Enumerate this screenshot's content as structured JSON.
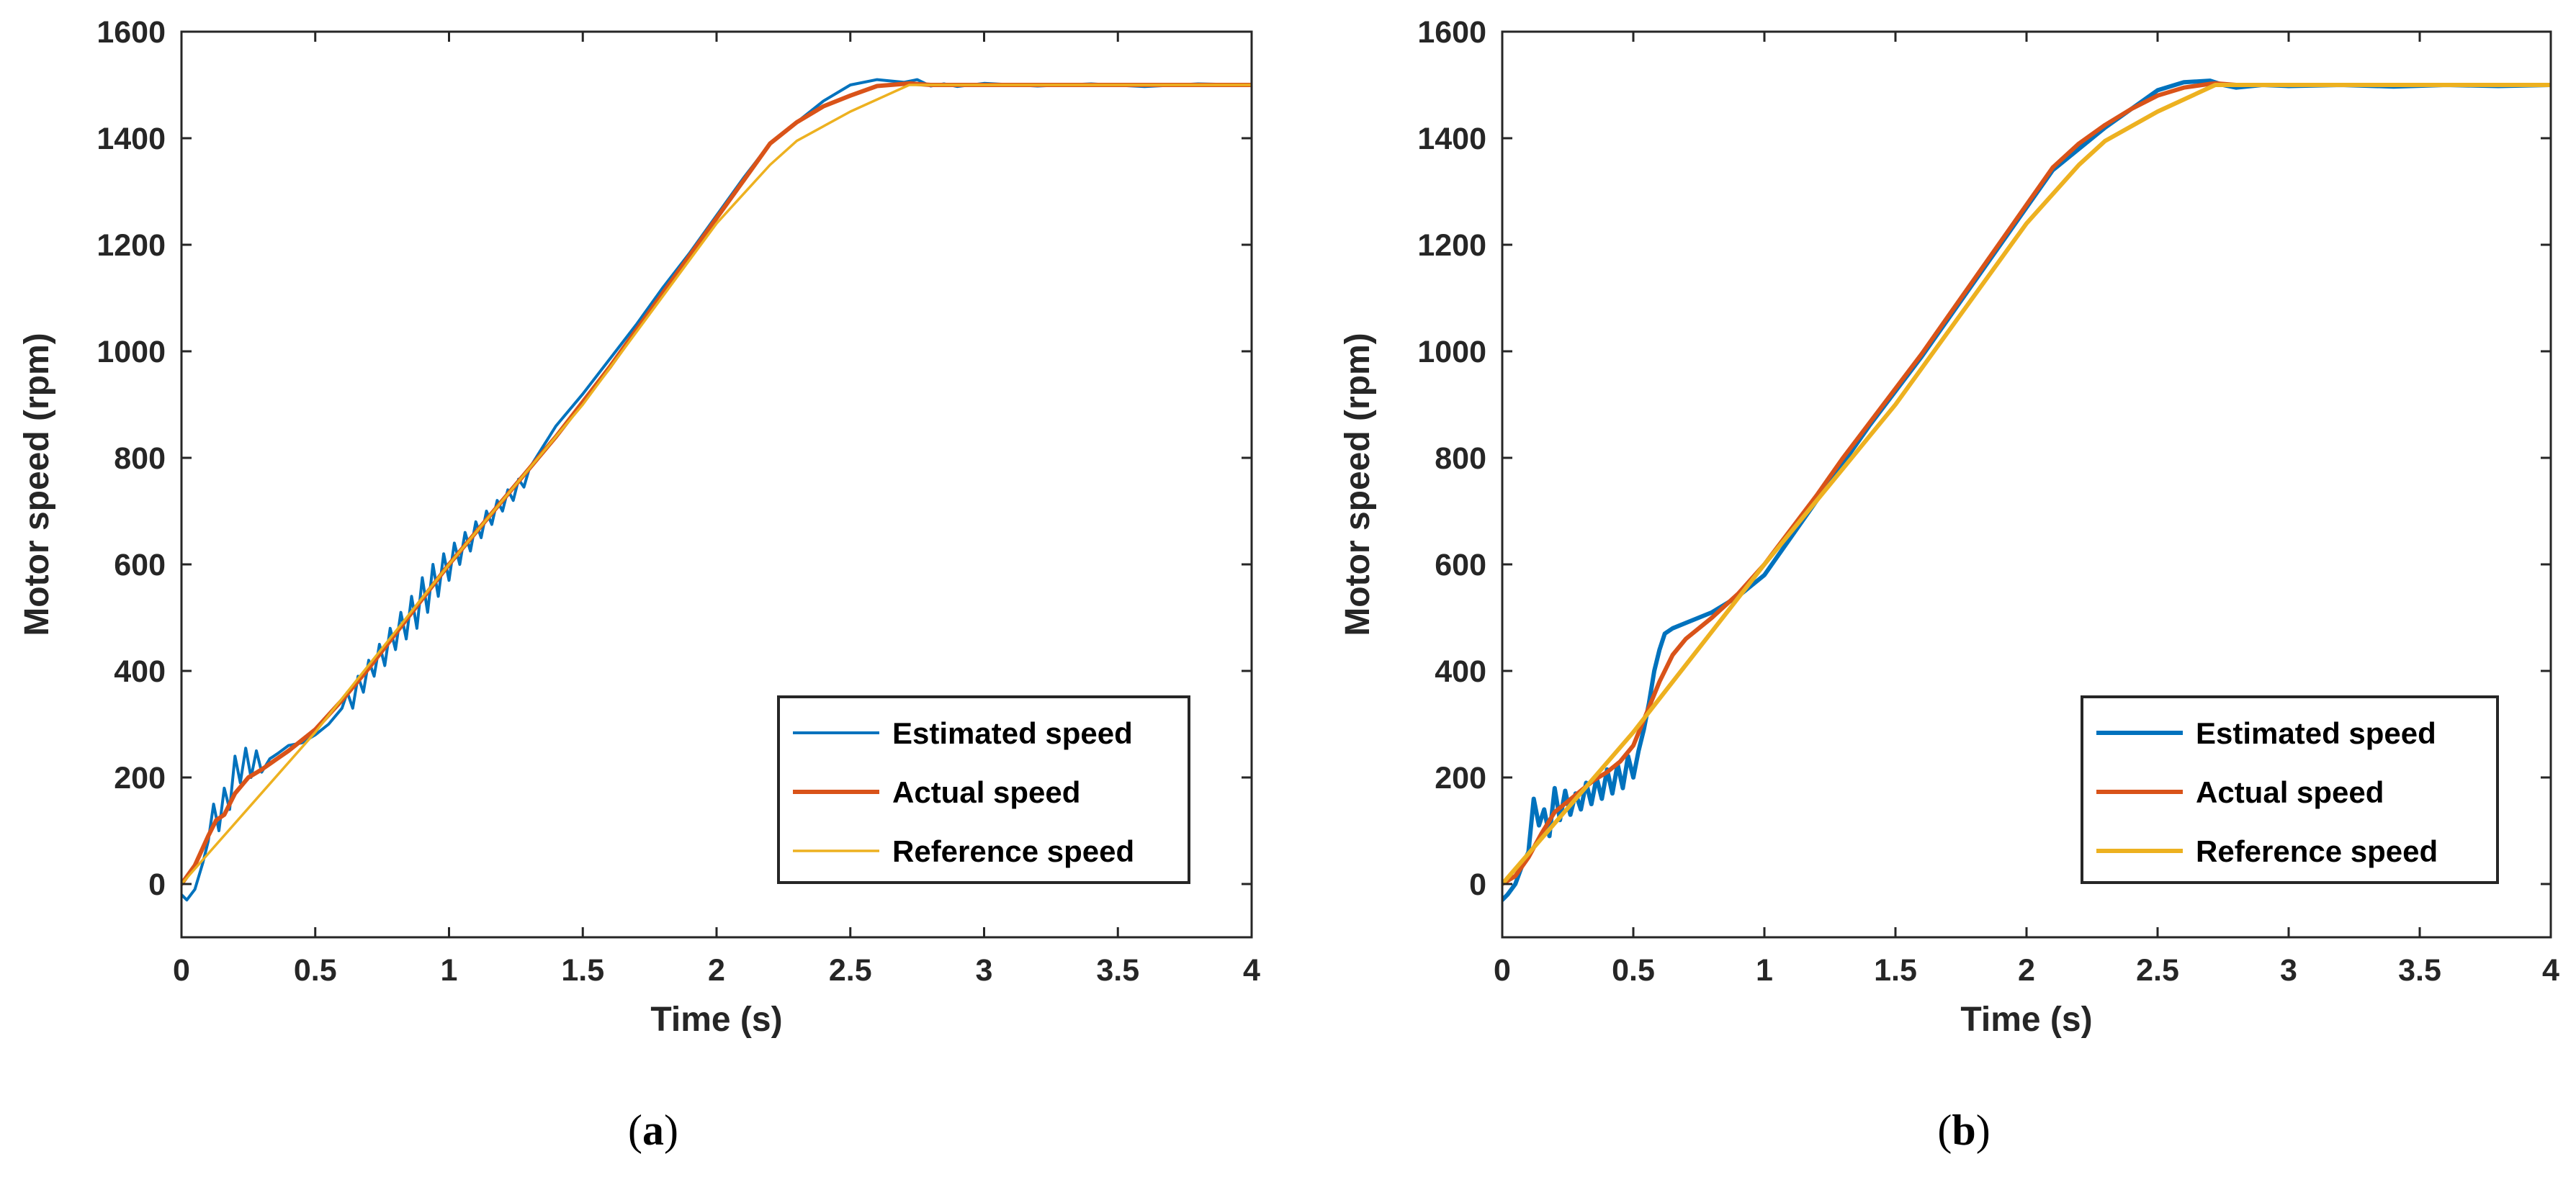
{
  "chart_data": [
    {
      "panel": "(a)",
      "panel_letter": "a",
      "type": "line",
      "xlabel": "Time (s)",
      "ylabel": "Motor speed (rpm)",
      "xlim": [
        0,
        4
      ],
      "ylim": [
        -100,
        1600
      ],
      "xticks": [
        0,
        0.5,
        1,
        1.5,
        2,
        2.5,
        3,
        3.5,
        4
      ],
      "xtick_labels": [
        "0",
        "0.5",
        "1",
        "1.5",
        "2",
        "2.5",
        "3",
        "3.5",
        "4"
      ],
      "yticks": [
        0,
        200,
        400,
        600,
        800,
        1000,
        1200,
        1400,
        1600
      ],
      "ytick_labels": [
        "0",
        "200",
        "400",
        "600",
        "800",
        "1000",
        "1200",
        "1400",
        "1600"
      ],
      "grid": false,
      "legend_position": "bottom-right",
      "series": [
        {
          "name": "Estimated speed",
          "color": "#0072BD",
          "x": [
            0,
            0.02,
            0.05,
            0.08,
            0.1,
            0.12,
            0.14,
            0.16,
            0.18,
            0.2,
            0.22,
            0.24,
            0.26,
            0.28,
            0.3,
            0.33,
            0.36,
            0.4,
            0.45,
            0.5,
            0.55,
            0.6,
            0.62,
            0.64,
            0.66,
            0.68,
            0.7,
            0.72,
            0.74,
            0.76,
            0.78,
            0.8,
            0.82,
            0.84,
            0.86,
            0.88,
            0.9,
            0.92,
            0.94,
            0.96,
            0.98,
            1.0,
            1.02,
            1.04,
            1.06,
            1.08,
            1.1,
            1.12,
            1.14,
            1.16,
            1.18,
            1.2,
            1.22,
            1.24,
            1.26,
            1.28,
            1.3,
            1.35,
            1.4,
            1.5,
            1.6,
            1.7,
            1.8,
            1.9,
            2.0,
            2.1,
            2.2,
            2.3,
            2.4,
            2.5,
            2.6,
            2.7,
            2.75,
            2.8,
            2.85,
            2.9,
            3.0,
            3.2,
            3.4,
            3.6,
            3.8,
            4.0
          ],
          "y": [
            -20,
            -30,
            -10,
            40,
            80,
            150,
            100,
            180,
            140,
            240,
            190,
            255,
            200,
            250,
            210,
            235,
            245,
            260,
            265,
            280,
            300,
            330,
            360,
            330,
            390,
            360,
            420,
            390,
            450,
            410,
            480,
            440,
            510,
            460,
            540,
            480,
            575,
            510,
            600,
            540,
            620,
            570,
            640,
            600,
            660,
            625,
            680,
            650,
            700,
            675,
            720,
            700,
            740,
            720,
            760,
            745,
            780,
            820,
            860,
            920,
            985,
            1050,
            1120,
            1185,
            1255,
            1325,
            1390,
            1430,
            1470,
            1500,
            1510,
            1505,
            1510,
            1498,
            1502,
            1497,
            1503,
            1498,
            1502,
            1497,
            1502,
            1500
          ]
        },
        {
          "name": "Actual speed",
          "color": "#D95319",
          "x": [
            0,
            0.05,
            0.1,
            0.13,
            0.16,
            0.2,
            0.25,
            0.3,
            0.4,
            0.5,
            0.6,
            0.7,
            0.8,
            0.9,
            1.0,
            1.1,
            1.2,
            1.3,
            1.4,
            1.5,
            1.6,
            1.7,
            1.8,
            1.9,
            2.0,
            2.1,
            2.2,
            2.3,
            2.4,
            2.5,
            2.6,
            2.7,
            2.72,
            2.8,
            3.0,
            3.5,
            4.0
          ],
          "y": [
            0,
            35,
            90,
            120,
            130,
            170,
            200,
            215,
            250,
            290,
            345,
            405,
            470,
            535,
            600,
            660,
            720,
            780,
            840,
            905,
            970,
            1040,
            1110,
            1180,
            1250,
            1320,
            1390,
            1430,
            1460,
            1480,
            1498,
            1502,
            1503,
            1500,
            1500,
            1500,
            1500
          ]
        },
        {
          "name": "Reference speed",
          "color": "#EDB120",
          "x": [
            0,
            0.5,
            1.0,
            1.5,
            2.0,
            2.2,
            2.3,
            2.5,
            2.72,
            3.0,
            3.5,
            4.0
          ],
          "y": [
            0,
            285,
            600,
            900,
            1240,
            1350,
            1395,
            1450,
            1500,
            1500,
            1500,
            1500
          ]
        }
      ]
    },
    {
      "panel": "(b)",
      "panel_letter": "b",
      "type": "line",
      "xlabel": "Time (s)",
      "ylabel": "Motor speed (rpm)",
      "xlim": [
        0,
        4
      ],
      "ylim": [
        -100,
        1600
      ],
      "xticks": [
        0,
        0.5,
        1,
        1.5,
        2,
        2.5,
        3,
        3.5,
        4
      ],
      "xtick_labels": [
        "0",
        "0.5",
        "1",
        "1.5",
        "2",
        "2.5",
        "3",
        "3.5",
        "4"
      ],
      "yticks": [
        0,
        200,
        400,
        600,
        800,
        1000,
        1200,
        1400,
        1600
      ],
      "ytick_labels": [
        "0",
        "200",
        "400",
        "600",
        "800",
        "1000",
        "1200",
        "1400",
        "1600"
      ],
      "grid": false,
      "legend_position": "bottom-right",
      "series": [
        {
          "name": "Estimated speed",
          "color": "#0072BD",
          "x": [
            0,
            0.02,
            0.05,
            0.08,
            0.1,
            0.12,
            0.14,
            0.16,
            0.18,
            0.2,
            0.22,
            0.24,
            0.26,
            0.28,
            0.3,
            0.32,
            0.34,
            0.36,
            0.38,
            0.4,
            0.42,
            0.44,
            0.46,
            0.48,
            0.5,
            0.52,
            0.54,
            0.56,
            0.58,
            0.6,
            0.62,
            0.65,
            0.7,
            0.75,
            0.8,
            0.85,
            0.9,
            0.95,
            1.0,
            1.1,
            1.2,
            1.3,
            1.4,
            1.5,
            1.6,
            1.7,
            1.8,
            1.9,
            2.0,
            2.1,
            2.2,
            2.3,
            2.4,
            2.5,
            2.6,
            2.7,
            2.75,
            2.8,
            2.9,
            3.0,
            3.2,
            3.4,
            3.6,
            3.8,
            4.0
          ],
          "y": [
            -30,
            -20,
            0,
            40,
            60,
            160,
            110,
            140,
            90,
            180,
            120,
            175,
            130,
            170,
            140,
            190,
            150,
            200,
            160,
            215,
            170,
            225,
            180,
            240,
            200,
            250,
            290,
            340,
            400,
            440,
            470,
            480,
            490,
            500,
            510,
            525,
            540,
            560,
            580,
            650,
            720,
            790,
            860,
            925,
            990,
            1060,
            1130,
            1200,
            1270,
            1340,
            1380,
            1420,
            1455,
            1490,
            1505,
            1508,
            1500,
            1495,
            1500,
            1498,
            1500,
            1497,
            1500,
            1498,
            1500
          ]
        },
        {
          "name": "Actual speed",
          "color": "#D95319",
          "x": [
            0,
            0.05,
            0.1,
            0.15,
            0.2,
            0.25,
            0.3,
            0.35,
            0.4,
            0.45,
            0.5,
            0.55,
            0.6,
            0.65,
            0.7,
            0.8,
            0.9,
            1.0,
            1.1,
            1.2,
            1.3,
            1.4,
            1.5,
            1.6,
            1.7,
            1.8,
            1.9,
            2.0,
            2.1,
            2.2,
            2.3,
            2.4,
            2.5,
            2.6,
            2.7,
            2.72,
            2.8,
            3.0,
            3.5,
            4.0
          ],
          "y": [
            0,
            15,
            50,
            95,
            135,
            155,
            175,
            195,
            210,
            230,
            260,
            320,
            380,
            430,
            460,
            500,
            545,
            600,
            665,
            730,
            800,
            865,
            930,
            995,
            1065,
            1135,
            1205,
            1275,
            1345,
            1390,
            1425,
            1455,
            1480,
            1495,
            1502,
            1503,
            1500,
            1500,
            1500,
            1500
          ]
        },
        {
          "name": "Reference speed",
          "color": "#EDB120",
          "x": [
            0,
            0.5,
            1.0,
            1.5,
            2.0,
            2.2,
            2.3,
            2.5,
            2.72,
            3.0,
            3.5,
            4.0
          ],
          "y": [
            0,
            285,
            600,
            900,
            1240,
            1350,
            1395,
            1450,
            1500,
            1500,
            1500,
            1500
          ]
        }
      ]
    }
  ]
}
